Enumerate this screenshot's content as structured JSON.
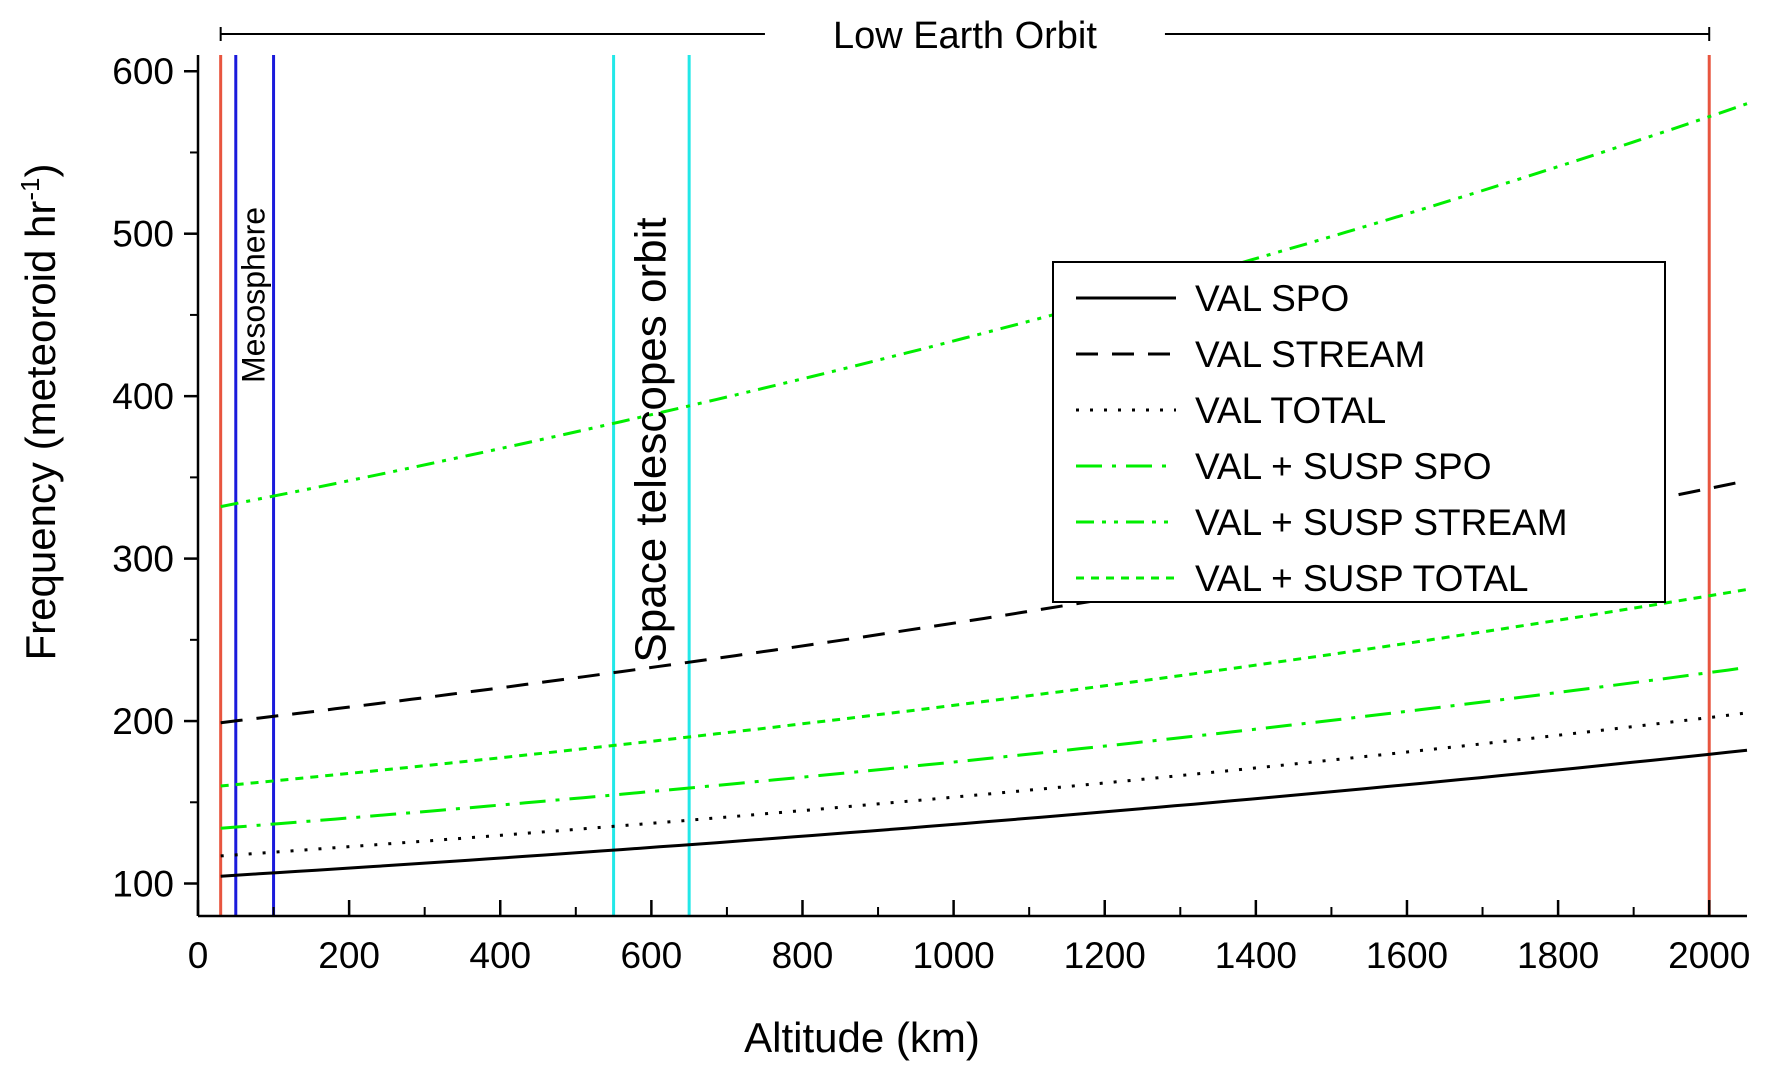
{
  "chart_data": {
    "type": "line",
    "xlabel": "Altitude (km)",
    "ylabel_main": "Frequency (meteoroid hr",
    "ylabel_sup": "-1",
    "ylabel_close": ")",
    "xlim": [
      0,
      2050
    ],
    "ylim": [
      80,
      610
    ],
    "xticks": [
      0,
      200,
      400,
      600,
      800,
      1000,
      1200,
      1400,
      1600,
      1800,
      2000
    ],
    "yticks": [
      100,
      200,
      300,
      400,
      500,
      600
    ],
    "x": [
      30,
      2050
    ],
    "series": [
      {
        "name": "VAL SPO",
        "style": "solid",
        "color": "#000000",
        "values": [
          104.5,
          182
        ]
      },
      {
        "name": "VAL STREAM",
        "style": "dash",
        "color": "#000000",
        "values": [
          199,
          348
        ]
      },
      {
        "name": "VAL TOTAL",
        "style": "dot",
        "color": "#000000",
        "values": [
          117,
          205
        ]
      },
      {
        "name": "VAL + SUSP SPO",
        "style": "dashdot",
        "color": "#00ee00",
        "values": [
          134,
          233
        ]
      },
      {
        "name": "VAL + SUSP STREAM",
        "style": "dashdotdot",
        "color": "#00ee00",
        "values": [
          332,
          580
        ]
      },
      {
        "name": "VAL + SUSP TOTAL",
        "style": "shortdash",
        "color": "#00ee00",
        "values": [
          160,
          281
        ]
      }
    ],
    "reference_lines": [
      {
        "group": "leo",
        "x": 30,
        "color": "#e8553f"
      },
      {
        "group": "leo",
        "x": 2000,
        "color": "#e8553f"
      },
      {
        "group": "mesosphere",
        "x": 50,
        "color": "#1a1adb"
      },
      {
        "group": "mesosphere",
        "x": 100,
        "color": "#1a1adb"
      },
      {
        "group": "telescopes",
        "x": 550,
        "color": "#22e8e8"
      },
      {
        "group": "telescopes",
        "x": 650,
        "color": "#22e8e8"
      }
    ],
    "annotations": {
      "leo": "Low Earth Orbit",
      "mesosphere": "Mesosphere",
      "telescopes": "Space telescopes orbit"
    },
    "legend_position": "upper-right"
  }
}
